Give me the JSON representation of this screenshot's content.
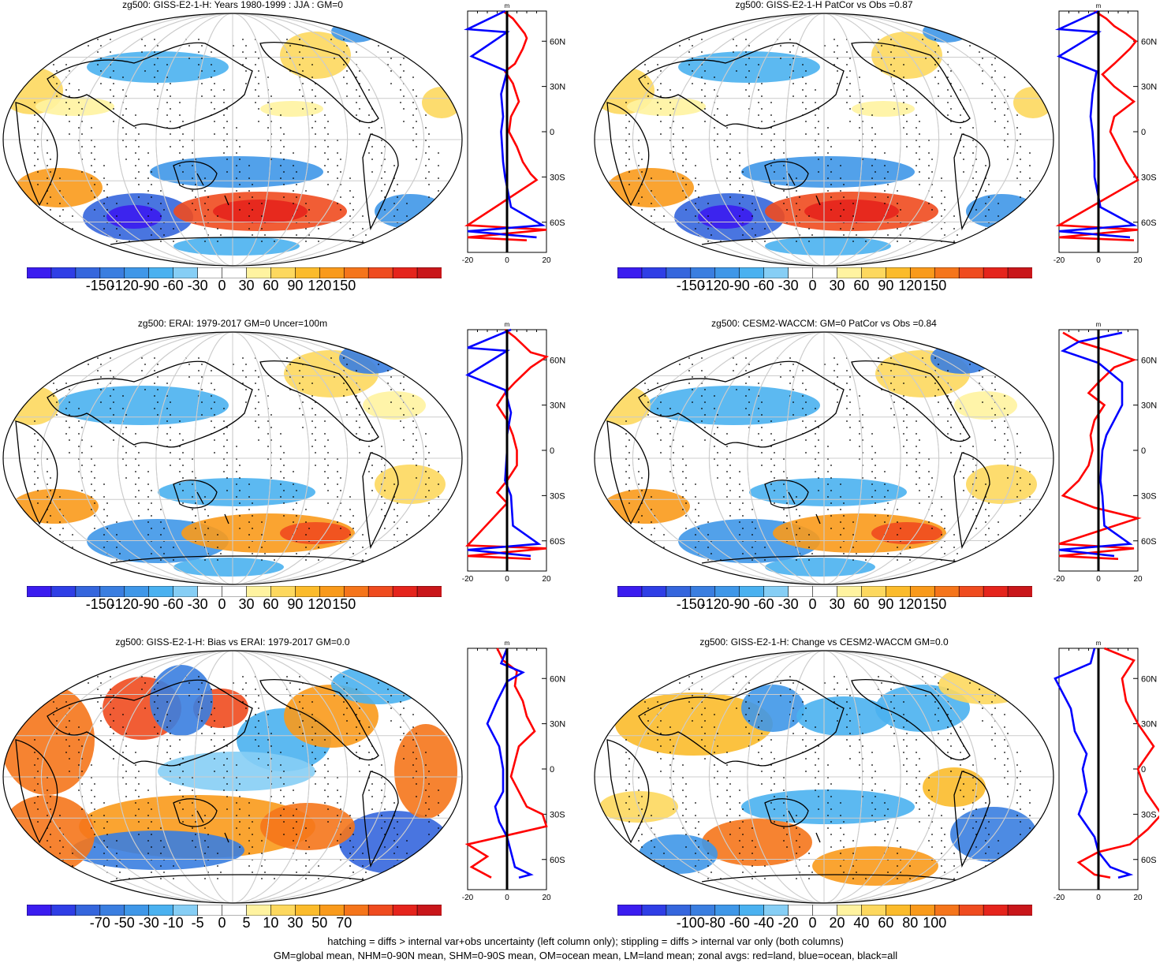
{
  "panels": [
    {
      "title": "zg500: GISS-E2-1-H: Years 1980-1999 : JJA : GM=0",
      "cbar_labels": [
        "-150",
        "-120",
        "-90",
        "-60",
        "-30",
        "0",
        "30",
        "60",
        "90",
        "120",
        "150"
      ],
      "zonal_unit": "m",
      "zonal_xticks": [
        "-20",
        "0",
        "20"
      ],
      "lat_labels": [
        "60N",
        "30N",
        "0",
        "30S",
        "60S"
      ],
      "zonal_profiles": {
        "red": [
          [
            -2,
            80
          ],
          [
            3,
            75
          ],
          [
            6,
            70
          ],
          [
            9,
            65
          ],
          [
            10,
            62
          ],
          [
            8,
            55
          ],
          [
            4,
            45
          ],
          [
            -1,
            40
          ],
          [
            3,
            32
          ],
          [
            6,
            20
          ],
          [
            2,
            10
          ],
          [
            1,
            0
          ],
          [
            5,
            -10
          ],
          [
            8,
            -20
          ],
          [
            12,
            -28
          ],
          [
            15,
            -32
          ],
          [
            -20,
            -62
          ],
          [
            20,
            -65
          ],
          [
            -20,
            -70
          ],
          [
            10,
            -72
          ]
        ],
        "blue": [
          [
            -1,
            80
          ],
          [
            -20,
            68
          ],
          [
            0,
            66
          ],
          [
            -18,
            50
          ],
          [
            0,
            40
          ],
          [
            -3,
            25
          ],
          [
            -2,
            10
          ],
          [
            -3,
            0
          ],
          [
            -2,
            -20
          ],
          [
            -1,
            -30
          ],
          [
            2,
            -50
          ],
          [
            18,
            -62
          ],
          [
            -20,
            -66
          ],
          [
            15,
            -70
          ]
        ]
      }
    },
    {
      "title": "zg500: GISS-E2-1-H PatCor vs Obs =0.87",
      "cbar_labels": [
        "-150",
        "-120",
        "-90",
        "-60",
        "-30",
        "0",
        "30",
        "60",
        "90",
        "120",
        "150"
      ],
      "zonal_unit": "m",
      "zonal_xticks": [
        "-20",
        "0",
        "20"
      ],
      "lat_labels": [
        "60N",
        "30N",
        "0",
        "30S",
        "60S"
      ],
      "zonal_profiles": {
        "red": [
          [
            -2,
            80
          ],
          [
            4,
            75
          ],
          [
            8,
            70
          ],
          [
            14,
            65
          ],
          [
            19,
            60
          ],
          [
            16,
            55
          ],
          [
            8,
            45
          ],
          [
            2,
            38
          ],
          [
            8,
            30
          ],
          [
            18,
            20
          ],
          [
            8,
            10
          ],
          [
            6,
            0
          ],
          [
            10,
            -10
          ],
          [
            14,
            -20
          ],
          [
            18,
            -28
          ],
          [
            20,
            -32
          ],
          [
            -20,
            -62
          ],
          [
            20,
            -65
          ],
          [
            -20,
            -70
          ],
          [
            18,
            -72
          ]
        ],
        "blue": [
          [
            0,
            80
          ],
          [
            -20,
            68
          ],
          [
            0,
            66
          ],
          [
            -20,
            50
          ],
          [
            -1,
            40
          ],
          [
            -3,
            25
          ],
          [
            -4,
            10
          ],
          [
            -3,
            0
          ],
          [
            -2,
            -20
          ],
          [
            -2,
            -30
          ],
          [
            1,
            -50
          ],
          [
            18,
            -62
          ],
          [
            -20,
            -66
          ],
          [
            16,
            -70
          ]
        ]
      }
    },
    {
      "title": "zg500: ERAI: 1979-2017 GM=0 Uncer=100m",
      "cbar_labels": [
        "-150",
        "-120",
        "-90",
        "-60",
        "-30",
        "0",
        "30",
        "60",
        "90",
        "120",
        "150"
      ],
      "zonal_unit": "m",
      "zonal_xticks": [
        "-20",
        "0",
        "20"
      ],
      "lat_labels": [
        "60N",
        "30N",
        "0",
        "30S",
        "60S"
      ],
      "zonal_profiles": {
        "red": [
          [
            -1,
            80
          ],
          [
            4,
            75
          ],
          [
            8,
            70
          ],
          [
            12,
            65
          ],
          [
            20,
            62
          ],
          [
            12,
            55
          ],
          [
            4,
            45
          ],
          [
            -1,
            38
          ],
          [
            -5,
            30
          ],
          [
            0,
            20
          ],
          [
            3,
            10
          ],
          [
            5,
            0
          ],
          [
            5,
            -10
          ],
          [
            0,
            -20
          ],
          [
            -5,
            -28
          ],
          [
            0,
            -35
          ],
          [
            -20,
            -63
          ],
          [
            20,
            -65
          ],
          [
            -20,
            -70
          ],
          [
            12,
            -72
          ]
        ],
        "blue": [
          [
            2,
            80
          ],
          [
            -20,
            68
          ],
          [
            0,
            66
          ],
          [
            -20,
            50
          ],
          [
            -1,
            40
          ],
          [
            2,
            25
          ],
          [
            0,
            10
          ],
          [
            0,
            0
          ],
          [
            -1,
            -20
          ],
          [
            2,
            -30
          ],
          [
            3,
            -50
          ],
          [
            16,
            -62
          ],
          [
            -20,
            -66
          ],
          [
            12,
            -70
          ]
        ]
      }
    },
    {
      "title": "zg500: CESM2-WACCM: GM=0 PatCor vs Obs =0.84",
      "cbar_labels": [
        "-150",
        "-120",
        "-90",
        "-60",
        "-30",
        "0",
        "30",
        "60",
        "90",
        "120",
        "150"
      ],
      "zonal_unit": "m",
      "zonal_xticks": [
        "-20",
        "0",
        "20"
      ],
      "lat_labels": [
        "60N",
        "30N",
        "0",
        "30S",
        "60S"
      ],
      "zonal_profiles": {
        "red": [
          [
            -18,
            78
          ],
          [
            -10,
            72
          ],
          [
            5,
            66
          ],
          [
            18,
            60
          ],
          [
            8,
            55
          ],
          [
            0,
            45
          ],
          [
            -5,
            38
          ],
          [
            3,
            30
          ],
          [
            -2,
            20
          ],
          [
            -4,
            10
          ],
          [
            -3,
            0
          ],
          [
            -5,
            -10
          ],
          [
            -10,
            -20
          ],
          [
            -18,
            -30
          ],
          [
            -2,
            -38
          ],
          [
            20,
            -45
          ],
          [
            -20,
            -62
          ],
          [
            18,
            -65
          ],
          [
            -20,
            -70
          ],
          [
            10,
            -72
          ]
        ],
        "blue": [
          [
            12,
            78
          ],
          [
            -10,
            72
          ],
          [
            -18,
            66
          ],
          [
            0,
            58
          ],
          [
            12,
            45
          ],
          [
            12,
            30
          ],
          [
            8,
            20
          ],
          [
            4,
            10
          ],
          [
            2,
            0
          ],
          [
            1,
            -20
          ],
          [
            2,
            -30
          ],
          [
            3,
            -50
          ],
          [
            16,
            -62
          ],
          [
            -20,
            -66
          ],
          [
            8,
            -70
          ]
        ]
      }
    },
    {
      "title": "zg500: GISS-E2-1-H: Bias vs ERAI: 1979-2017 GM=0.0",
      "cbar_labels": [
        "-70",
        "-50",
        "-30",
        "-10",
        "-5",
        "0",
        "5",
        "10",
        "30",
        "50",
        "70"
      ],
      "zonal_unit": "m",
      "zonal_xticks": [
        "-20",
        "0",
        "20"
      ],
      "lat_labels": [
        "60N",
        "30N",
        "0",
        "30S",
        "60S"
      ],
      "zonal_profiles": {
        "red": [
          [
            -5,
            80
          ],
          [
            -2,
            72
          ],
          [
            5,
            65
          ],
          [
            4,
            55
          ],
          [
            8,
            45
          ],
          [
            10,
            35
          ],
          [
            14,
            25
          ],
          [
            6,
            15
          ],
          [
            4,
            5
          ],
          [
            2,
            -5
          ],
          [
            6,
            -15
          ],
          [
            10,
            -25
          ],
          [
            18,
            -30
          ],
          [
            20,
            -38
          ],
          [
            -20,
            -50
          ],
          [
            -10,
            -58
          ],
          [
            -18,
            -65
          ],
          [
            -8,
            -72
          ]
        ],
        "blue": [
          [
            0,
            80
          ],
          [
            -3,
            70
          ],
          [
            8,
            64
          ],
          [
            0,
            58
          ],
          [
            -5,
            45
          ],
          [
            -10,
            30
          ],
          [
            -4,
            15
          ],
          [
            -2,
            0
          ],
          [
            -2,
            -15
          ],
          [
            -6,
            -25
          ],
          [
            -4,
            -35
          ],
          [
            0,
            -45
          ],
          [
            2,
            -55
          ],
          [
            4,
            -65
          ],
          [
            12,
            -70
          ],
          [
            6,
            -72
          ]
        ]
      }
    },
    {
      "title": "zg500: GISS-E2-1-H: Change vs CESM2-WACCM GM=0.0",
      "cbar_labels": [
        "-100",
        "-80",
        "-60",
        "-40",
        "-20",
        "0",
        "20",
        "40",
        "60",
        "80",
        "100"
      ],
      "zonal_unit": "m",
      "zonal_xticks": [
        "-20",
        "0",
        "20"
      ],
      "lat_labels": [
        "60N",
        "30N",
        "0",
        "30S",
        "60S"
      ],
      "zonal_profiles": {
        "red": [
          [
            3,
            80
          ],
          [
            18,
            72
          ],
          [
            12,
            60
          ],
          [
            14,
            45
          ],
          [
            20,
            30
          ],
          [
            28,
            15
          ],
          [
            20,
            0
          ],
          [
            24,
            -15
          ],
          [
            32,
            -30
          ],
          [
            25,
            -40
          ],
          [
            16,
            -50
          ],
          [
            0,
            -55
          ],
          [
            -10,
            -62
          ],
          [
            -2,
            -70
          ],
          [
            6,
            -72
          ]
        ],
        "blue": [
          [
            -2,
            80
          ],
          [
            -4,
            70
          ],
          [
            -22,
            60
          ],
          [
            -14,
            40
          ],
          [
            -12,
            25
          ],
          [
            -6,
            10
          ],
          [
            -8,
            0
          ],
          [
            -6,
            -15
          ],
          [
            -10,
            -30
          ],
          [
            -2,
            -45
          ],
          [
            0,
            -55
          ],
          [
            6,
            -65
          ],
          [
            16,
            -70
          ],
          [
            10,
            -72
          ]
        ]
      }
    }
  ],
  "colormap": [
    "#3b1cf0",
    "#2f3ee6",
    "#3566dd",
    "#3a7ee0",
    "#3f97e8",
    "#4ab1f0",
    "#86cef5",
    "#ffffff",
    "#ffffff",
    "#fff3a0",
    "#fdd85e",
    "#fbbb2b",
    "#f99a1b",
    "#f5751b",
    "#ef4b1f",
    "#e5241c",
    "#c9161a"
  ],
  "footer": [
    "hatching = diffs > internal var+obs uncertainty (left column only); stippling = diffs > internal var only (both columns)",
    "GM=global mean, NHM=0-90N mean, SHM=0-90S mean, OM=ocean mean, LM=land mean; zonal avgs: red=land, blue=ocean, black=all"
  ]
}
